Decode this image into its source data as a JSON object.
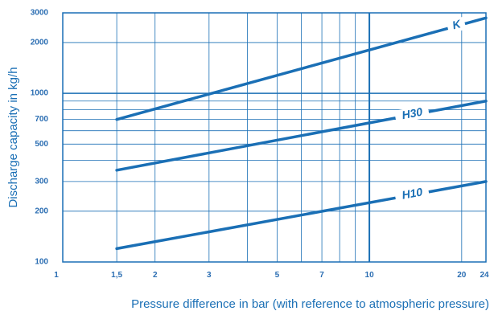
{
  "chart_data": {
    "type": "line",
    "xlabel": "Pressure difference in bar (with reference to atmospheric pressure)",
    "ylabel": "Discharge capacity in kg/h",
    "x_scale": "log",
    "y_scale": "log",
    "xlim": [
      1,
      24
    ],
    "ylim": [
      100,
      3000
    ],
    "x_ticks": [
      {
        "value": 1,
        "label": "1"
      },
      {
        "value": 1.5,
        "label": "1,5"
      },
      {
        "value": 2,
        "label": "2"
      },
      {
        "value": 3,
        "label": "3"
      },
      {
        "value": 5,
        "label": "5"
      },
      {
        "value": 7,
        "label": "7"
      },
      {
        "value": 10,
        "label": "10"
      },
      {
        "value": 20,
        "label": "20"
      },
      {
        "value": 24,
        "label": "24"
      }
    ],
    "y_ticks": [
      {
        "value": 100,
        "label": "100"
      },
      {
        "value": 200,
        "label": "200"
      },
      {
        "value": 300,
        "label": "300"
      },
      {
        "value": 500,
        "label": "500"
      },
      {
        "value": 700,
        "label": "700"
      },
      {
        "value": 1000,
        "label": "1000"
      },
      {
        "value": 2000,
        "label": "2000"
      },
      {
        "value": 3000,
        "label": "3000"
      }
    ],
    "x_grid": [
      1.5,
      2,
      3,
      4,
      5,
      6,
      7,
      8,
      9,
      10,
      20,
      24
    ],
    "y_grid": [
      200,
      300,
      400,
      500,
      600,
      700,
      800,
      900,
      1000,
      2000
    ],
    "grid": true,
    "series": [
      {
        "name": "K",
        "x": [
          1.5,
          24
        ],
        "y": [
          700,
          2800
        ]
      },
      {
        "name": "H30",
        "x": [
          1.5,
          24
        ],
        "y": [
          350,
          900
        ]
      },
      {
        "name": "H10",
        "x": [
          1.5,
          24
        ],
        "y": [
          120,
          300
        ]
      }
    ],
    "colors": {
      "axis": "#1a6fb5",
      "line": "#1a6fb5",
      "grid": "#1a6fb5",
      "tick_text": "#2a6db2"
    }
  }
}
